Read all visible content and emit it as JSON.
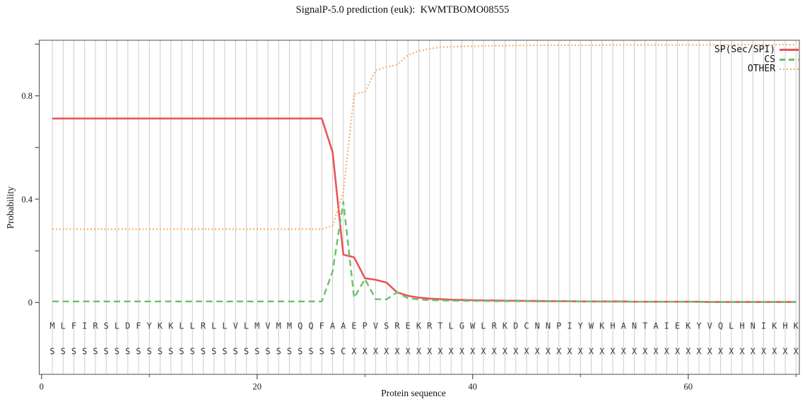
{
  "chart_data": {
    "type": "line",
    "title": "SignalP-5.0 prediction (euk):  KWMTBOMO08555",
    "xlabel": "Protein sequence",
    "ylabel": "Probability",
    "xlim": [
      0,
      70.4
    ],
    "ylim": [
      0,
      1.015
    ],
    "grid": "vertical-per-residue",
    "legend_position": "upper right",
    "x_ticks_major": [
      0,
      20,
      40,
      60
    ],
    "x_ticks_minor": [
      10,
      30,
      50,
      70
    ],
    "y_ticks_labeled": [
      0,
      0.4,
      0.8
    ],
    "y_ticks_all": [
      0,
      0.2,
      0.4,
      0.6,
      0.8,
      1.0
    ],
    "sequence": "MLFIRSLDFYKKLLRLLVLMVMMQQFAAEPVSREKRTLGWLRKDCNNPIYWKHANTAIEKYVQLHNIKHK",
    "markers": "SSSSSSSSSSSSSSSSSSSSSSSSSSSCXXXXXXXXXXXXXXXXXXXXXXXXXXXXXXXXXXXXXXXXXX",
    "series": [
      {
        "name": "SP(Sec/SPI)",
        "style": "solid",
        "color": "#e85558",
        "values": [
          0.712,
          0.712,
          0.712,
          0.712,
          0.712,
          0.712,
          0.712,
          0.712,
          0.712,
          0.712,
          0.712,
          0.712,
          0.712,
          0.712,
          0.712,
          0.712,
          0.712,
          0.712,
          0.712,
          0.712,
          0.712,
          0.712,
          0.712,
          0.712,
          0.712,
          0.712,
          0.583,
          0.185,
          0.175,
          0.094,
          0.088,
          0.077,
          0.039,
          0.026,
          0.019,
          0.015,
          0.013,
          0.011,
          0.01,
          0.009,
          0.008,
          0.008,
          0.007,
          0.007,
          0.006,
          0.006,
          0.005,
          0.005,
          0.005,
          0.004,
          0.004,
          0.004,
          0.004,
          0.004,
          0.003,
          0.003,
          0.003,
          0.003,
          0.003,
          0.003,
          0.003,
          0.002,
          0.002,
          0.002,
          0.002,
          0.002,
          0.002,
          0.002,
          0.002,
          0.002
        ]
      },
      {
        "name": "CS",
        "style": "dashed",
        "color": "#6cbf69",
        "values": [
          0.004,
          0.004,
          0.004,
          0.004,
          0.004,
          0.004,
          0.004,
          0.004,
          0.004,
          0.004,
          0.004,
          0.004,
          0.004,
          0.004,
          0.004,
          0.004,
          0.004,
          0.004,
          0.004,
          0.004,
          0.004,
          0.004,
          0.004,
          0.004,
          0.004,
          0.004,
          0.12,
          0.39,
          0.018,
          0.091,
          0.013,
          0.012,
          0.04,
          0.016,
          0.012,
          0.009,
          0.008,
          0.007,
          0.007,
          0.006,
          0.006,
          0.005,
          0.005,
          0.005,
          0.005,
          0.004,
          0.004,
          0.004,
          0.004,
          0.004,
          0.004,
          0.003,
          0.003,
          0.003,
          0.003,
          0.003,
          0.003,
          0.003,
          0.003,
          0.003,
          0.002,
          0.002,
          0.002,
          0.002,
          0.002,
          0.002,
          0.002,
          0.002,
          0.002,
          0.002
        ]
      },
      {
        "name": "OTHER",
        "style": "dotted",
        "color": "#f6ac63",
        "values": [
          0.284,
          0.284,
          0.284,
          0.284,
          0.284,
          0.284,
          0.284,
          0.284,
          0.284,
          0.284,
          0.284,
          0.284,
          0.284,
          0.284,
          0.284,
          0.284,
          0.284,
          0.284,
          0.284,
          0.284,
          0.284,
          0.284,
          0.284,
          0.284,
          0.284,
          0.284,
          0.297,
          0.425,
          0.807,
          0.815,
          0.899,
          0.911,
          0.921,
          0.958,
          0.973,
          0.982,
          0.988,
          0.99,
          0.991,
          0.992,
          0.993,
          0.994,
          0.994,
          0.995,
          0.995,
          0.996,
          0.996,
          0.996,
          0.996,
          0.996,
          0.996,
          0.996,
          0.997,
          0.997,
          0.997,
          0.997,
          0.997,
          0.997,
          0.997,
          0.997,
          0.997,
          0.997,
          0.997,
          0.998,
          0.998,
          0.998,
          0.998,
          0.998,
          0.998,
          0.998
        ]
      }
    ],
    "colors": {
      "grid": "#cccccc",
      "frame": "#4d4d4d",
      "tick_text": "#1a1a1a",
      "letters": "#3b3b3b"
    }
  }
}
